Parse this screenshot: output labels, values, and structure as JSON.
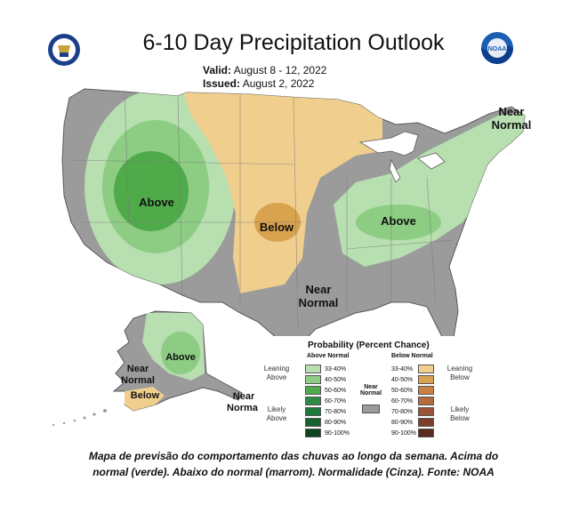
{
  "header": {
    "title": "6-10 Day Precipitation Outlook",
    "valid_label": "Valid:",
    "valid_value": "August 8 - 12, 2022",
    "issued_label": "Issued:",
    "issued_value": "August 2, 2022"
  },
  "logos": {
    "left": "doc-seal-icon",
    "right": "noaa-logo-icon",
    "right_text": "NOAA"
  },
  "map_labels": {
    "above_west": "Above",
    "below_plains": "Below",
    "above_east": "Above",
    "near_normal_ne_line1": "Near",
    "near_normal_ne_line2": "Normal",
    "near_normal_south_line1": "Near",
    "near_normal_south_line2": "Normal",
    "above_alaska": "Above",
    "near_normal_ak_line1": "Near",
    "near_normal_ak_line2": "Normal",
    "below_alaska": "Below",
    "near_normal_panhandle_line1": "Near",
    "near_normal_panhandle_line2": "Normal"
  },
  "legend": {
    "title": "Probability (Percent Chance)",
    "above_head": "Above Normal",
    "below_head": "Below Normal",
    "near_head_line1": "Near",
    "near_head_line2": "Normal",
    "leaning_above_line1": "Leaning",
    "leaning_above_line2": "Above",
    "likely_above_line1": "Likely",
    "likely_above_line2": "Above",
    "leaning_below_line1": "Leaning",
    "leaning_below_line2": "Below",
    "likely_below_line1": "Likely",
    "likely_below_line2": "Below",
    "categories": [
      "33-40%",
      "40-50%",
      "50-60%",
      "60-70%",
      "70-80%",
      "80-90%",
      "90-100%"
    ],
    "above_colors": [
      "#b7dfb0",
      "#8ccc83",
      "#4faa4a",
      "#2e8b45",
      "#1d7a3c",
      "#17622f",
      "#0d4420"
    ],
    "below_colors": [
      "#f0cf8e",
      "#d9a24e",
      "#c9813f",
      "#b46a3d",
      "#9a5338",
      "#7c3f2b",
      "#5a2b1c"
    ],
    "near_color": "#9b9b9b"
  },
  "caption": {
    "line1": "Mapa de previsão do comportamento das chuvas ao longo da semana. Acima do",
    "line2": "normal (verde). Abaixo do normal (marrom). Normalidade (Cinza). Fonte: NOAA"
  }
}
